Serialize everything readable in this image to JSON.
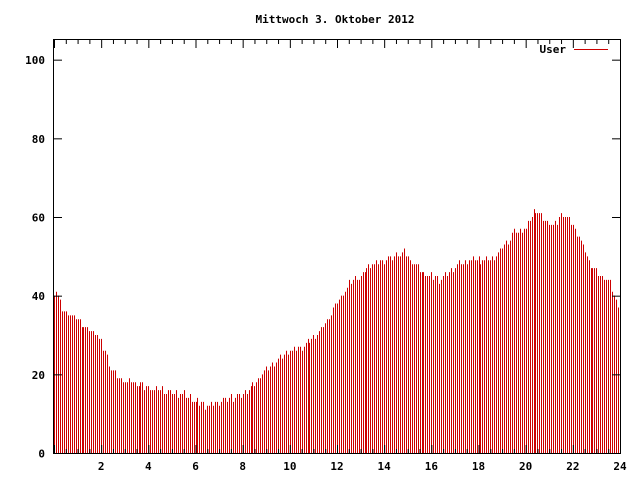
{
  "chart_data": {
    "type": "bar",
    "title": "Mittwoch 3. Oktober 2012",
    "xlabel": "",
    "ylabel": "",
    "xlim": [
      0,
      24
    ],
    "ylim": [
      0,
      105
    ],
    "x_ticks": [
      "2",
      "4",
      "6",
      "8",
      "10",
      "12",
      "14",
      "16",
      "18",
      "20",
      "22",
      "24"
    ],
    "y_ticks": [
      "0",
      "20",
      "40",
      "60",
      "80",
      "100"
    ],
    "legend": {
      "position": "top-right",
      "label": "User"
    },
    "grid": false,
    "color": "#cc0000",
    "series": [
      {
        "name": "User",
        "anchors": [
          [
            0.0,
            41
          ],
          [
            0.1,
            41
          ],
          [
            0.25,
            38
          ],
          [
            0.4,
            36
          ],
          [
            0.7,
            35
          ],
          [
            1.0,
            34
          ],
          [
            1.3,
            32
          ],
          [
            1.6,
            31
          ],
          [
            1.85,
            30
          ],
          [
            2.0,
            28
          ],
          [
            2.2,
            25
          ],
          [
            2.4,
            21
          ],
          [
            2.6,
            20
          ],
          [
            2.8,
            19
          ],
          [
            3.0,
            18
          ],
          [
            3.4,
            18
          ],
          [
            3.8,
            17
          ],
          [
            4.2,
            16
          ],
          [
            4.6,
            16
          ],
          [
            5.0,
            15
          ],
          [
            5.4,
            15
          ],
          [
            5.8,
            14
          ],
          [
            6.0,
            13
          ],
          [
            6.5,
            12
          ],
          [
            7.0,
            13
          ],
          [
            7.5,
            14
          ],
          [
            8.0,
            15
          ],
          [
            8.4,
            17
          ],
          [
            8.8,
            20
          ],
          [
            9.2,
            22
          ],
          [
            9.6,
            24
          ],
          [
            10.0,
            26
          ],
          [
            10.5,
            27
          ],
          [
            11.0,
            29
          ],
          [
            11.5,
            33
          ],
          [
            12.0,
            38
          ],
          [
            12.5,
            43
          ],
          [
            13.0,
            45
          ],
          [
            13.5,
            48
          ],
          [
            14.0,
            49
          ],
          [
            14.5,
            50
          ],
          [
            14.8,
            51
          ],
          [
            15.2,
            48
          ],
          [
            15.6,
            46
          ],
          [
            16.0,
            45
          ],
          [
            16.4,
            44
          ],
          [
            16.8,
            46
          ],
          [
            17.2,
            48
          ],
          [
            17.6,
            49
          ],
          [
            18.0,
            49
          ],
          [
            18.5,
            49
          ],
          [
            19.0,
            52
          ],
          [
            19.5,
            56
          ],
          [
            20.0,
            57
          ],
          [
            20.4,
            62
          ],
          [
            20.8,
            59
          ],
          [
            21.2,
            58
          ],
          [
            21.6,
            61
          ],
          [
            22.0,
            58
          ],
          [
            22.4,
            53
          ],
          [
            22.8,
            47
          ],
          [
            23.2,
            45
          ],
          [
            23.6,
            43
          ],
          [
            24.0,
            36
          ]
        ]
      }
    ]
  }
}
